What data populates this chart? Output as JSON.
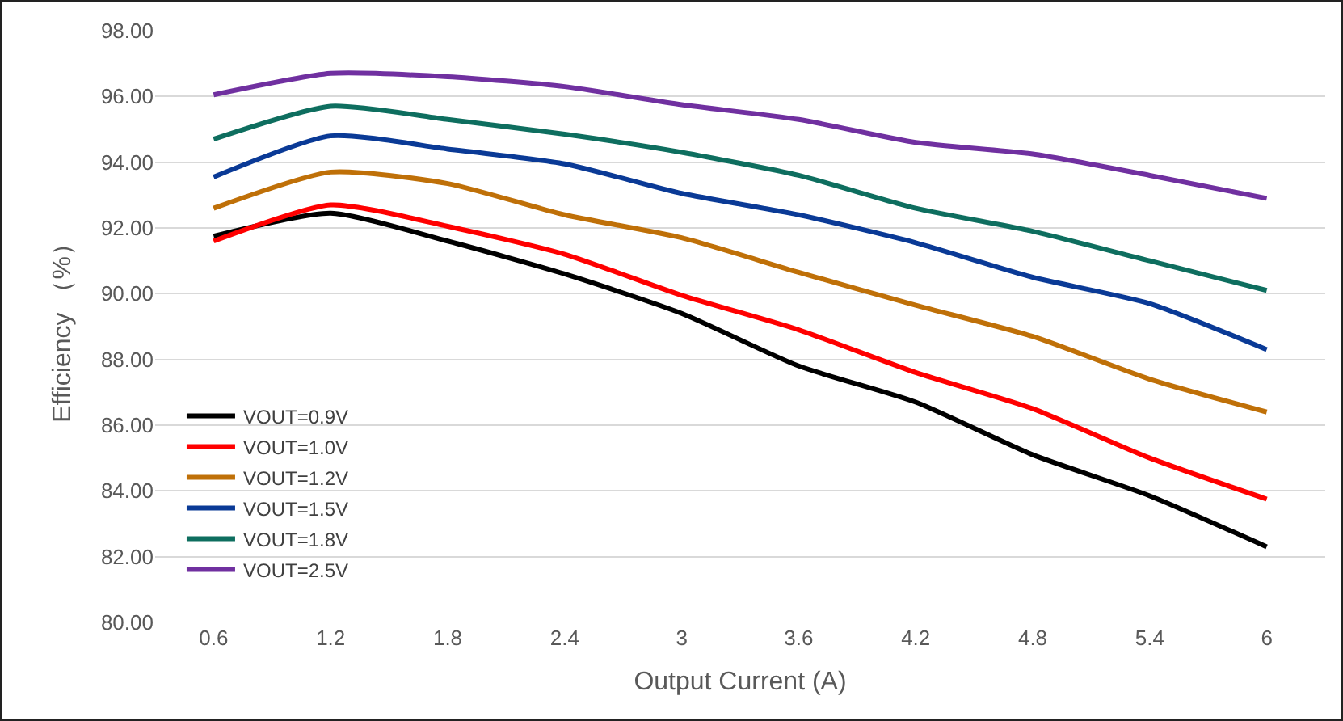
{
  "chart_data": {
    "type": "line",
    "xlabel": "Output Current (A)",
    "ylabel": "Efficiency （%）",
    "categories": [
      "0.6",
      "1.2",
      "1.8",
      "2.4",
      "3",
      "3.6",
      "4.2",
      "4.8",
      "5.4",
      "6"
    ],
    "series": [
      {
        "name": "VOUT=0.9V",
        "color": "#000000",
        "values": [
          91.75,
          92.45,
          91.6,
          90.6,
          89.4,
          87.8,
          86.7,
          85.1,
          83.85,
          82.3
        ]
      },
      {
        "name": "VOUT=1.0V",
        "color": "#ff0000",
        "values": [
          91.6,
          92.7,
          92.05,
          91.2,
          89.95,
          88.9,
          87.6,
          86.5,
          85.0,
          83.75
        ]
      },
      {
        "name": "VOUT=1.2V",
        "color": "#bf7008",
        "values": [
          92.6,
          93.7,
          93.35,
          92.4,
          91.7,
          90.65,
          89.65,
          88.7,
          87.4,
          86.4
        ]
      },
      {
        "name": "VOUT=1.5V",
        "color": "#0a3a96",
        "values": [
          93.55,
          94.8,
          94.4,
          93.95,
          93.05,
          92.4,
          91.55,
          90.5,
          89.7,
          88.3
        ]
      },
      {
        "name": "VOUT=1.8V",
        "color": "#0e6e5f",
        "values": [
          94.7,
          95.7,
          95.3,
          94.85,
          94.3,
          93.6,
          92.6,
          91.9,
          91.0,
          90.1
        ]
      },
      {
        "name": "VOUT=2.5V",
        "color": "#7030a0",
        "values": [
          96.05,
          96.7,
          96.6,
          96.3,
          95.75,
          95.3,
          94.6,
          94.25,
          93.6,
          92.9
        ]
      }
    ],
    "ylim": [
      80,
      98
    ],
    "yticks": [
      {
        "value": 80,
        "label": "80.00"
      },
      {
        "value": 82,
        "label": "82.00"
      },
      {
        "value": 84,
        "label": "84.00"
      },
      {
        "value": 86,
        "label": "86.00"
      },
      {
        "value": 88,
        "label": "88.00"
      },
      {
        "value": 90,
        "label": "90.00"
      },
      {
        "value": 92,
        "label": "92.00"
      },
      {
        "value": 94,
        "label": "94.00"
      },
      {
        "value": 96,
        "label": "96.00"
      },
      {
        "value": 98,
        "label": "98.00"
      }
    ],
    "grid": "y",
    "legend": "bottom left",
    "marker": "none",
    "line_style": "solid"
  }
}
